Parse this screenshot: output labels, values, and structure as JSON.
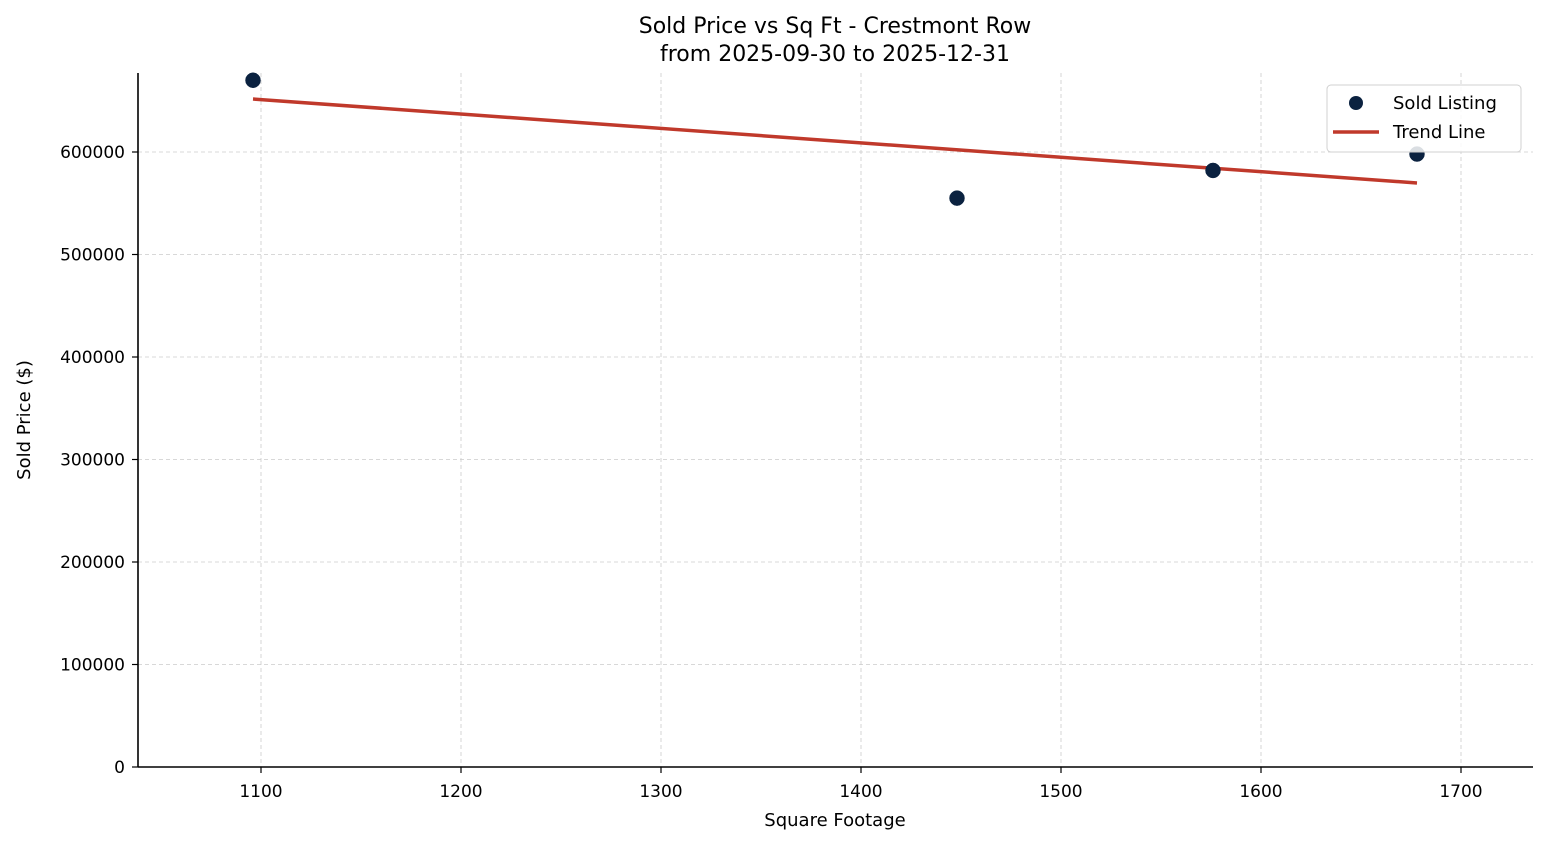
{
  "chart_data": {
    "type": "scatter",
    "title": "Sold Price vs Sq Ft - Crestmont Row",
    "subtitle": "from 2025-09-30 to 2025-12-31",
    "xlabel": "Square Footage",
    "ylabel": "Sold Price ($)",
    "xlim": [
      1038,
      1736
    ],
    "ylim": [
      0,
      670000
    ],
    "xticks": [
      1100,
      1200,
      1300,
      1400,
      1500,
      1600,
      1700
    ],
    "yticks": [
      0,
      100000,
      200000,
      300000,
      400000,
      500000,
      600000
    ],
    "xtick_labels": [
      "1100",
      "1200",
      "1300",
      "1400",
      "1500",
      "1600",
      "1700"
    ],
    "ytick_labels": [
      "0",
      "100000",
      "200000",
      "300000",
      "400000",
      "500000",
      "600000"
    ],
    "grid": true,
    "legend_position": "upper right",
    "series": [
      {
        "name": "Sold Listing",
        "kind": "scatter",
        "color": "#0b2240",
        "points": [
          {
            "x": 1096,
            "y": 670000
          },
          {
            "x": 1448,
            "y": 555000
          },
          {
            "x": 1576,
            "y": 582000
          },
          {
            "x": 1678,
            "y": 598000
          }
        ]
      },
      {
        "name": "Trend Line",
        "kind": "line",
        "color": "#c0392b",
        "points": [
          {
            "x": 1096,
            "y": 651700
          },
          {
            "x": 1678,
            "y": 569800
          }
        ]
      }
    ]
  },
  "legend": {
    "items": [
      {
        "label": "Sold Listing",
        "icon": "marker-dot-icon",
        "color": "#0b2240"
      },
      {
        "label": "Trend Line",
        "icon": "line-swatch-icon",
        "color": "#c0392b"
      }
    ]
  }
}
